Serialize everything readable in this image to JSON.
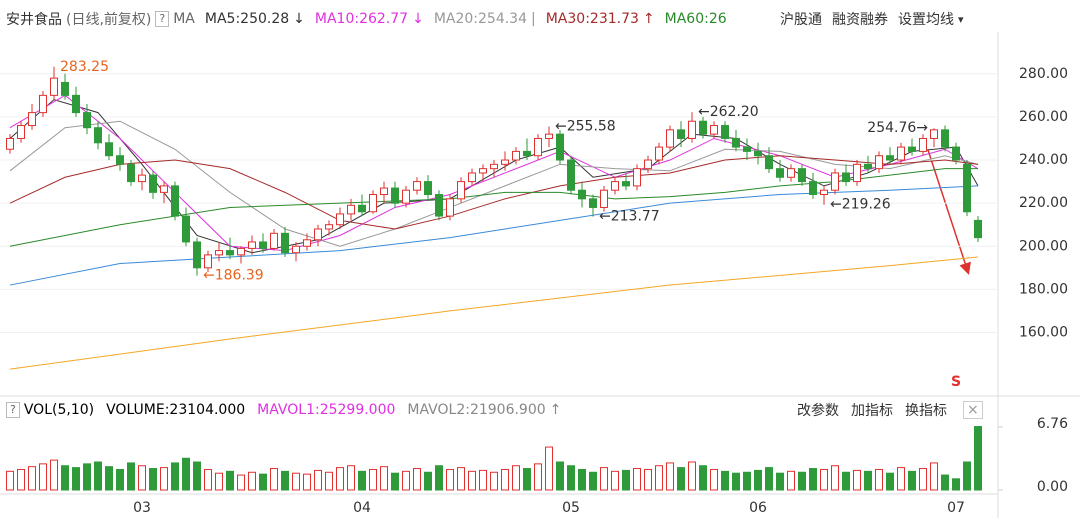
{
  "chart_data": {
    "type": "candlestick",
    "title": "安井食品",
    "subtitle": "(日线,前复权)",
    "help": "?",
    "indicator": "MA",
    "toolbar": [
      "沪股通",
      "融资融券",
      "设置均线"
    ],
    "menu": "▾",
    "signal": "S",
    "up_color": "#e0312f",
    "down_color": "#2e9a3a",
    "grid": true,
    "ylim": [
      131,
      298
    ],
    "yticks": [
      {
        "value": 160,
        "label": "160.00"
      },
      {
        "value": 180,
        "label": "180.00"
      },
      {
        "value": 200,
        "label": "200.00"
      },
      {
        "value": 220,
        "label": "220.00"
      },
      {
        "value": 240,
        "label": "240.00"
      },
      {
        "value": 260,
        "label": "260.00"
      },
      {
        "value": 280,
        "label": "280.00"
      }
    ],
    "categories": [
      null,
      null,
      null,
      null,
      null,
      null,
      null,
      null,
      null,
      null,
      null,
      null,
      "03",
      null,
      null,
      null,
      null,
      null,
      null,
      null,
      null,
      null,
      null,
      null,
      null,
      null,
      null,
      null,
      null,
      null,
      null,
      null,
      "04",
      null,
      null,
      null,
      null,
      null,
      null,
      null,
      null,
      null,
      null,
      null,
      null,
      null,
      null,
      null,
      null,
      null,
      null,
      "05",
      null,
      null,
      null,
      null,
      null,
      null,
      null,
      null,
      null,
      null,
      null,
      null,
      null,
      null,
      null,
      null,
      "06",
      null,
      null,
      null,
      null,
      null,
      null,
      null,
      null,
      null,
      null,
      null,
      null,
      null,
      null,
      null,
      null,
      null,
      "07",
      null,
      null
    ],
    "candles": [
      [
        245,
        252,
        243,
        250
      ],
      [
        250,
        258,
        248,
        256
      ],
      [
        256,
        266,
        254,
        262
      ],
      [
        262,
        272,
        260,
        270
      ],
      [
        270,
        283.25,
        268,
        278
      ],
      [
        276,
        280,
        268,
        270
      ],
      [
        270,
        274,
        260,
        262
      ],
      [
        262,
        266,
        252,
        255
      ],
      [
        255,
        258,
        245,
        248
      ],
      [
        248,
        252,
        240,
        242
      ],
      [
        242,
        246,
        235,
        238
      ],
      [
        238,
        240,
        228,
        230
      ],
      [
        230,
        236,
        226,
        233
      ],
      [
        233,
        235,
        222,
        225
      ],
      [
        225,
        230,
        220,
        228
      ],
      [
        228,
        230,
        212,
        214
      ],
      [
        214,
        218,
        200,
        202
      ],
      [
        202,
        204,
        186.39,
        190
      ],
      [
        190,
        198,
        188,
        196
      ],
      [
        196,
        202,
        193,
        198
      ],
      [
        198,
        204,
        194,
        196
      ],
      [
        196,
        200,
        192,
        199
      ],
      [
        199,
        205,
        196,
        202
      ],
      [
        202,
        206,
        197,
        199
      ],
      [
        199,
        208,
        198,
        206
      ],
      [
        206,
        209,
        195,
        197
      ],
      [
        197,
        202,
        193,
        200
      ],
      [
        200,
        206,
        198,
        203
      ],
      [
        203,
        210,
        200,
        208
      ],
      [
        208,
        212,
        205,
        210
      ],
      [
        210,
        218,
        208,
        215
      ],
      [
        215,
        222,
        212,
        219
      ],
      [
        219,
        224,
        214,
        216
      ],
      [
        216,
        226,
        215,
        224
      ],
      [
        224,
        230,
        220,
        227
      ],
      [
        227,
        230,
        218,
        220
      ],
      [
        220,
        228,
        218,
        226
      ],
      [
        226,
        232,
        224,
        230
      ],
      [
        230,
        233,
        222,
        224
      ],
      [
        224,
        226,
        212,
        214
      ],
      [
        214,
        224,
        212,
        222
      ],
      [
        222,
        232,
        220,
        230
      ],
      [
        230,
        236,
        228,
        234
      ],
      [
        234,
        238,
        230,
        236
      ],
      [
        236,
        240,
        232,
        238
      ],
      [
        238,
        244,
        235,
        240
      ],
      [
        240,
        246,
        238,
        244
      ],
      [
        244,
        250,
        240,
        242
      ],
      [
        242,
        252,
        240,
        250
      ],
      [
        250,
        255.58,
        246,
        252
      ],
      [
        252,
        254,
        238,
        240
      ],
      [
        240,
        242,
        224,
        226
      ],
      [
        226,
        230,
        218,
        222
      ],
      [
        222,
        224,
        213.77,
        218
      ],
      [
        218,
        228,
        216,
        226
      ],
      [
        226,
        232,
        224,
        230
      ],
      [
        230,
        234,
        226,
        228
      ],
      [
        228,
        238,
        226,
        236
      ],
      [
        236,
        242,
        234,
        240
      ],
      [
        240,
        248,
        238,
        246
      ],
      [
        246,
        256,
        244,
        254
      ],
      [
        254,
        258,
        246,
        250
      ],
      [
        250,
        262.2,
        248,
        258
      ],
      [
        258,
        260,
        250,
        252
      ],
      [
        252,
        258,
        250,
        256
      ],
      [
        256,
        258,
        248,
        250
      ],
      [
        250,
        254,
        244,
        246
      ],
      [
        246,
        250,
        240,
        244
      ],
      [
        244,
        248,
        238,
        242
      ],
      [
        242,
        246,
        234,
        236
      ],
      [
        236,
        240,
        230,
        232
      ],
      [
        232,
        238,
        230,
        236
      ],
      [
        236,
        238,
        228,
        230
      ],
      [
        230,
        234,
        222,
        224
      ],
      [
        224,
        228,
        219.26,
        226
      ],
      [
        226,
        236,
        224,
        234
      ],
      [
        234,
        238,
        228,
        230
      ],
      [
        230,
        240,
        228,
        238
      ],
      [
        238,
        242,
        234,
        236
      ],
      [
        236,
        244,
        234,
        242
      ],
      [
        242,
        246,
        238,
        240
      ],
      [
        240,
        248,
        238,
        246
      ],
      [
        246,
        250,
        242,
        244
      ],
      [
        244,
        252,
        242,
        250
      ],
      [
        250,
        254.76,
        246,
        254
      ],
      [
        254,
        256,
        244,
        246
      ],
      [
        246,
        248,
        238,
        240
      ],
      [
        238,
        240,
        214,
        216
      ],
      [
        212,
        214,
        202,
        204
      ]
    ],
    "series": [
      {
        "name": "MA5",
        "legend": "MA5:250.28",
        "trend": "↓",
        "color": "#333333",
        "x": [
          0,
          4,
          8,
          12,
          17,
          22,
          28,
          34,
          40,
          46,
          50,
          53,
          58,
          62,
          66,
          70,
          74,
          78,
          82,
          86,
          88
        ],
        "values": [
          250,
          268,
          262,
          238,
          205,
          197,
          203,
          220,
          222,
          240,
          246,
          232,
          236,
          252,
          250,
          238,
          228,
          234,
          244,
          246,
          228
        ]
      },
      {
        "name": "MA10",
        "legend": "MA10:262.77",
        "trend": "↓",
        "color": "#e030e0",
        "x": [
          0,
          5,
          10,
          15,
          20,
          25,
          30,
          35,
          40,
          45,
          50,
          55,
          60,
          64,
          70,
          75,
          80,
          85,
          88
        ],
        "values": [
          255,
          270,
          250,
          225,
          200,
          198,
          205,
          218,
          224,
          234,
          244,
          232,
          240,
          250,
          242,
          232,
          238,
          245,
          236
        ]
      },
      {
        "name": "MA20",
        "legend": "MA20:254.34",
        "trend": "|",
        "color": "#999999",
        "x": [
          0,
          5,
          10,
          15,
          20,
          25,
          30,
          35,
          40,
          45,
          50,
          55,
          60,
          65,
          70,
          75,
          80,
          85,
          88
        ],
        "values": [
          235,
          255,
          258,
          245,
          225,
          208,
          200,
          208,
          218,
          228,
          238,
          236,
          235,
          245,
          244,
          238,
          236,
          242,
          238
        ]
      },
      {
        "name": "MA30",
        "legend": "MA30:231.73",
        "trend": "↑",
        "color": "#a52a2a",
        "x": [
          0,
          5,
          10,
          15,
          20,
          25,
          30,
          35,
          40,
          45,
          50,
          55,
          60,
          65,
          70,
          75,
          80,
          85,
          88
        ],
        "values": [
          220,
          232,
          238,
          240,
          236,
          225,
          212,
          208,
          214,
          222,
          228,
          232,
          234,
          240,
          242,
          240,
          238,
          240,
          238
        ]
      },
      {
        "name": "MA60",
        "legend": "MA60:26",
        "color": "#2a8a2a",
        "x": [
          0,
          10,
          20,
          30,
          40,
          45,
          50,
          55,
          60,
          65,
          70,
          75,
          80,
          85,
          88
        ],
        "values": [
          200,
          210,
          218,
          220,
          222,
          225,
          225,
          222,
          223,
          225,
          228,
          230,
          233,
          236,
          236
        ]
      },
      {
        "color": "#3a8ad8",
        "x": [
          0,
          10,
          20,
          30,
          40,
          50,
          60,
          70,
          80,
          88
        ],
        "values": [
          182,
          192,
          195,
          198,
          204,
          212,
          220,
          224,
          226,
          228
        ]
      },
      {
        "color": "#f5a623",
        "x": [
          0,
          20,
          40,
          60,
          80,
          88
        ],
        "values": [
          143,
          157,
          170,
          182,
          191,
          195
        ]
      }
    ],
    "annotations": [
      {
        "text": "283.25",
        "x": 4,
        "y": 283.25,
        "anchor": "start",
        "color": "#e8641e"
      },
      {
        "text": "←186.39",
        "x": 17,
        "y": 186.39,
        "anchor": "start",
        "color": "#e8641e"
      },
      {
        "text": "←255.58",
        "x": 49,
        "y": 255.58,
        "anchor": "start",
        "color": "#333333"
      },
      {
        "text": "←213.77",
        "x": 53,
        "y": 213.77,
        "anchor": "start",
        "color": "#333333"
      },
      {
        "text": "←262.20",
        "x": 62,
        "y": 262.2,
        "anchor": "start",
        "color": "#333333"
      },
      {
        "text": "←219.26",
        "x": 74,
        "y": 219.26,
        "anchor": "start",
        "color": "#333333"
      },
      {
        "text": "254.76→",
        "x": 84,
        "y": 254.76,
        "anchor": "end",
        "color": "#333333"
      }
    ],
    "volume": {
      "title": "VOL(5,10)",
      "legend": [
        {
          "text": "VOLUME:23104.000",
          "color": "#000000"
        },
        {
          "text": "MAVOL1:25299.000",
          "color": "#e030e0"
        },
        {
          "text": "MAVOL2:21906.900",
          "color": "#888888",
          "trend": "↑"
        }
      ],
      "buttons": [
        "改参数",
        "加指标",
        "换指标"
      ],
      "close": "×",
      "ylim": [
        0,
        7.5
      ],
      "yticks": [
        {
          "value": 0,
          "label": "0.00"
        },
        6.76
      ],
      "values": [
        2.0,
        2.2,
        2.5,
        2.8,
        3.2,
        2.6,
        2.4,
        2.8,
        3.0,
        2.5,
        2.2,
        2.9,
        2.6,
        2.3,
        2.4,
        2.9,
        3.4,
        3.0,
        2.2,
        1.8,
        2.0,
        1.6,
        1.9,
        1.7,
        2.3,
        2.0,
        1.8,
        1.7,
        2.1,
        1.9,
        2.4,
        2.6,
        2.0,
        2.2,
        2.5,
        1.8,
        2.0,
        2.3,
        1.9,
        2.6,
        2.2,
        2.4,
        2.0,
        2.1,
        1.9,
        2.2,
        2.6,
        2.3,
        2.8,
        4.6,
        3.0,
        2.6,
        2.2,
        1.9,
        2.4,
        2.0,
        2.1,
        2.3,
        2.2,
        2.6,
        2.9,
        2.4,
        3.0,
        2.6,
        2.2,
        2.0,
        1.8,
        1.9,
        2.1,
        2.4,
        1.8,
        2.0,
        1.9,
        2.3,
        2.2,
        2.6,
        1.9,
        2.1,
        2.0,
        2.2,
        1.8,
        2.4,
        2.0,
        2.3,
        2.9,
        1.6,
        1.2,
        3.0,
        6.8
      ]
    }
  }
}
